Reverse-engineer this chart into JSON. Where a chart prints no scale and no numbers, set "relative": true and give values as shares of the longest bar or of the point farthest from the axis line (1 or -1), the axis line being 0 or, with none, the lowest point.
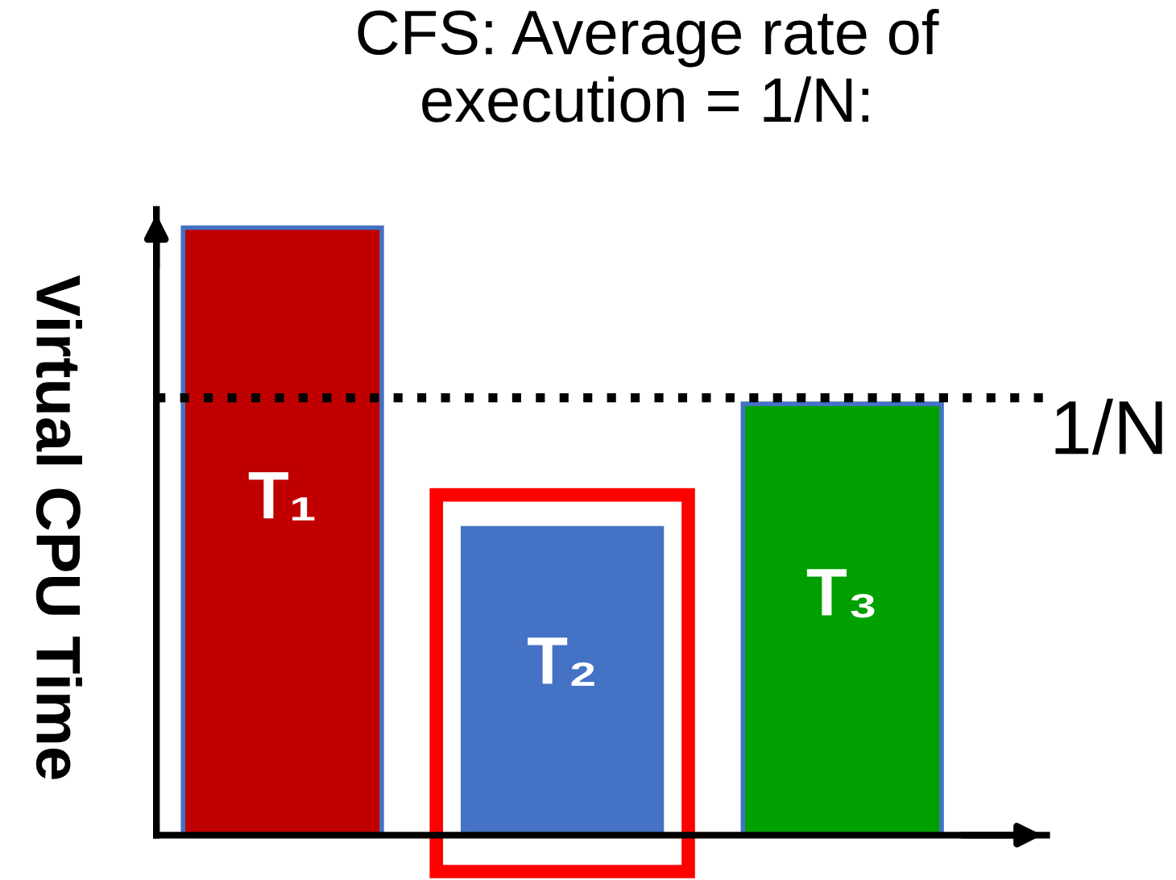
{
  "chart_data": {
    "type": "bar",
    "relative": true,
    "title": "CFS: Average rate of\nexecution = 1/N:",
    "ylabel": "Virtual CPU Time",
    "categories": [
      "T₁",
      "T₂",
      "T₃"
    ],
    "values": [
      1,
      0.505,
      0.71
    ],
    "colors": [
      "#c00000",
      "#4472c4",
      "#00a000"
    ],
    "ref_lines": [
      {
        "axis": "y",
        "value": 0.72,
        "label": "1/N",
        "color": "#000000",
        "line_style": "dotted"
      }
    ]
  }
}
